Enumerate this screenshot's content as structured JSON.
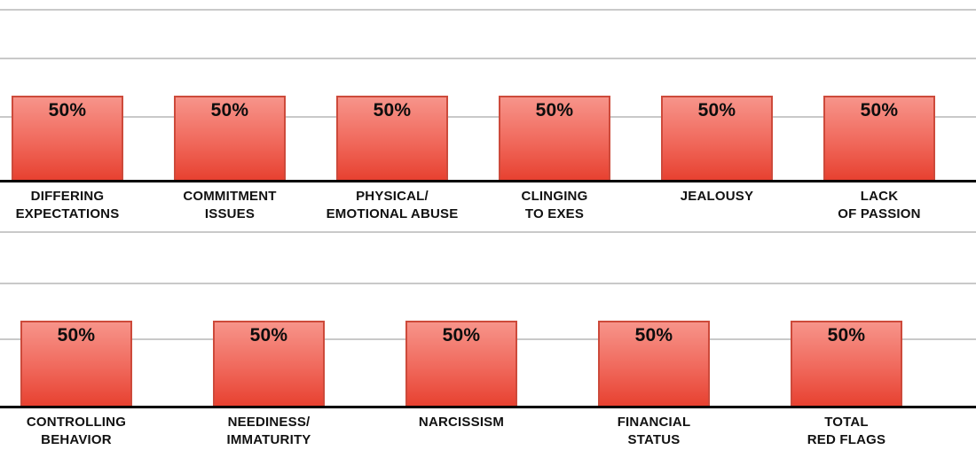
{
  "colors": {
    "background": "#FFFFFF",
    "bar_fill_top": "#F7948A",
    "bar_fill_mid": "#F0685B",
    "bar_fill_bottom": "#E74130",
    "bar_border": "#CD4A3B",
    "gridline": "#C9C9C9",
    "axis": "#000000",
    "label_text": "#111111",
    "value_text": "#0D0D0D"
  },
  "chart_data": [
    {
      "type": "bar",
      "row": 1,
      "title": "",
      "xlabel": "",
      "ylabel": "",
      "ylim": [
        0,
        100
      ],
      "grid": true,
      "legend": false,
      "categories": [
        "DIFFERING EXPECTATIONS",
        "COMMITMENT ISSUES",
        "PHYSICAL/ EMOTIONAL ABUSE",
        "CLINGING TO EXES",
        "JEALOUSY",
        "LACK OF PASSION"
      ],
      "category_lines": [
        [
          "DIFFERING",
          "EXPECTATIONS"
        ],
        [
          "COMMITMENT",
          "ISSUES"
        ],
        [
          "PHYSICAL/",
          "EMOTIONAL ABUSE"
        ],
        [
          "CLINGING",
          "TO EXES"
        ],
        [
          "JEALOUSY"
        ],
        [
          "LACK",
          "OF PASSION"
        ]
      ],
      "values": [
        50,
        50,
        50,
        50,
        50,
        50
      ],
      "value_labels": [
        "50%",
        "50%",
        "50%",
        "50%",
        "50%",
        "50%"
      ]
    },
    {
      "type": "bar",
      "row": 2,
      "title": "",
      "xlabel": "",
      "ylabel": "",
      "ylim": [
        0,
        100
      ],
      "grid": true,
      "legend": false,
      "categories": [
        "CONTROLLING BEHAVIOR",
        "NEEDINESS/ IMMATURITY",
        "NARCISSISM",
        "FINANCIAL STATUS",
        "TOTAL RED FLAGS"
      ],
      "category_lines": [
        [
          "CONTROLLING",
          "BEHAVIOR"
        ],
        [
          "NEEDINESS/",
          "IMMATURITY"
        ],
        [
          "NARCISSISM"
        ],
        [
          "FINANCIAL",
          "STATUS"
        ],
        [
          "TOTAL",
          "RED FLAGS"
        ]
      ],
      "values": [
        50,
        50,
        50,
        50,
        50
      ],
      "value_labels": [
        "50%",
        "50%",
        "50%",
        "50%",
        "50%"
      ]
    }
  ]
}
